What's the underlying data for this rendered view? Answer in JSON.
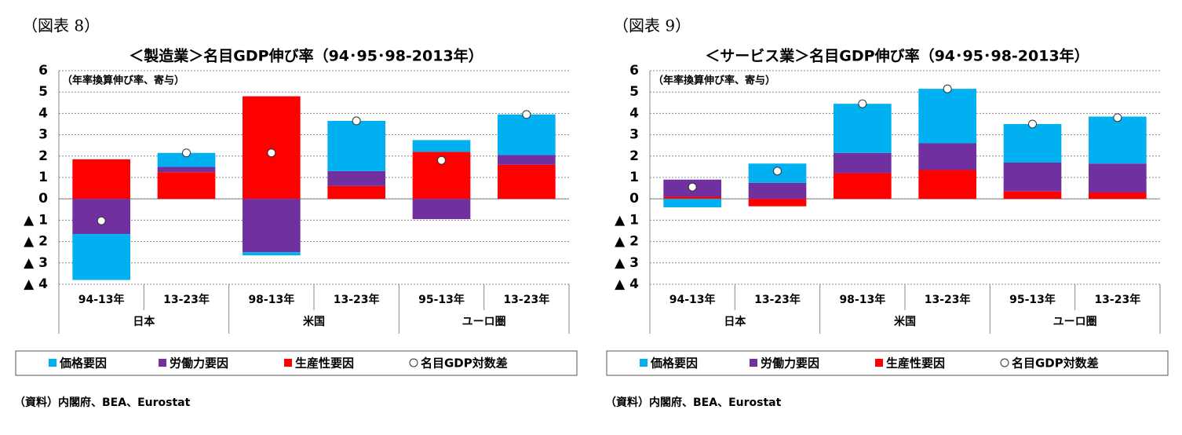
{
  "chart_data": [
    {
      "type": "bar",
      "figure_label": "（図表 8）",
      "title": "＜製造業＞名目GDP伸び率（94･95･98-2013年）",
      "subtitle": "（年率換算伸び率、寄与）",
      "categories": [
        "94-13年",
        "13-23年",
        "98-13年",
        "13-23年",
        "95-13年",
        "13-23年"
      ],
      "groups": [
        "日本",
        "米国",
        "ユーロ圏"
      ],
      "stacked": true,
      "grid": true,
      "ylim": [
        -4,
        6
      ],
      "yticks": [
        {
          "value": -4,
          "label": "▲ 4"
        },
        {
          "value": -3,
          "label": "▲ 3"
        },
        {
          "value": -2,
          "label": "▲ 2"
        },
        {
          "value": -1,
          "label": "▲ 1"
        },
        0,
        1,
        2,
        3,
        4,
        5,
        6
      ],
      "series": [
        {
          "name": "価格要因",
          "color": "#00b0f0",
          "values": [
            -2.15,
            0.65,
            -0.15,
            2.35,
            0.55,
            1.9
          ]
        },
        {
          "name": "労働力要因",
          "color": "#7030a0",
          "values": [
            -1.65,
            0.25,
            -2.5,
            0.7,
            -0.95,
            0.45
          ]
        },
        {
          "name": "生産性要因",
          "color": "#ff0000",
          "values": [
            1.85,
            1.25,
            4.8,
            0.6,
            2.2,
            1.6
          ]
        }
      ],
      "markers": {
        "name": "名目GDP対数差",
        "color": "#ffffff",
        "values": [
          -1.03,
          2.15,
          2.15,
          3.65,
          1.8,
          3.95
        ]
      },
      "source": "（資料）内閣府、BEA、Eurostat"
    },
    {
      "type": "bar",
      "figure_label": "（図表 9）",
      "title": "＜サービス業＞名目GDP伸び率（94･95･98-2013年）",
      "subtitle": "（年率換算伸び率、寄与）",
      "categories": [
        "94-13年",
        "13-23年",
        "98-13年",
        "13-23年",
        "95-13年",
        "13-23年"
      ],
      "groups": [
        "日本",
        "米国",
        "ユーロ圏"
      ],
      "stacked": true,
      "grid": true,
      "ylim": [
        -4,
        6
      ],
      "yticks": [
        {
          "value": -4,
          "label": "▲ 4"
        },
        {
          "value": -3,
          "label": "▲ 3"
        },
        {
          "value": -2,
          "label": "▲ 2"
        },
        {
          "value": -1,
          "label": "▲ 1"
        },
        0,
        1,
        2,
        3,
        4,
        5,
        6
      ],
      "series": [
        {
          "name": "価格要因",
          "color": "#00b0f0",
          "values": [
            -0.4,
            0.9,
            2.3,
            2.55,
            1.8,
            2.2
          ]
        },
        {
          "name": "労働力要因",
          "color": "#7030a0",
          "values": [
            0.8,
            0.75,
            0.95,
            1.25,
            1.35,
            1.35
          ]
        },
        {
          "name": "生産性要因",
          "color": "#ff0000",
          "values": [
            0.1,
            -0.35,
            1.2,
            1.35,
            0.35,
            0.3
          ]
        }
      ],
      "markers": {
        "name": "名目GDP対数差",
        "color": "#ffffff",
        "values": [
          0.55,
          1.3,
          4.45,
          5.15,
          3.5,
          3.8
        ]
      },
      "source": "（資料）内閣府、BEA、Eurostat"
    }
  ]
}
